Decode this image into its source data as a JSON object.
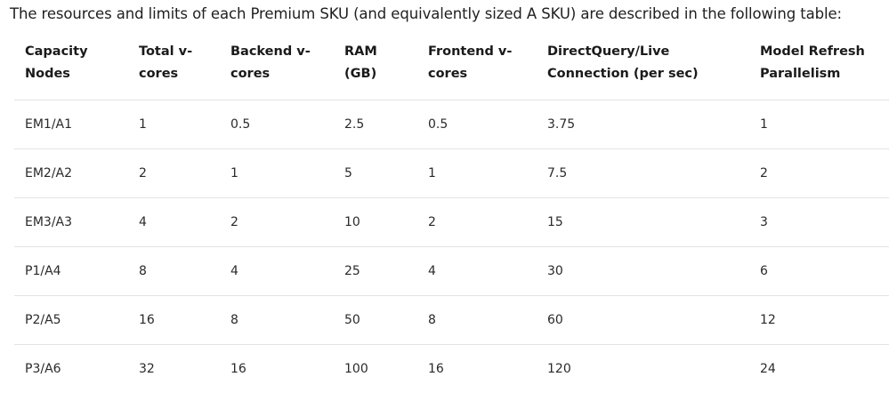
{
  "intro_text": "The resources and limits of each Premium SKU (and equivalently sized A SKU) are described in the following table:",
  "table": {
    "headers": [
      [
        "Capacity",
        "Nodes"
      ],
      [
        "Total v-",
        "cores"
      ],
      [
        "Backend v-",
        "cores"
      ],
      [
        "RAM",
        "(GB)"
      ],
      [
        "Frontend v-",
        "cores"
      ],
      [
        "DirectQuery/Live",
        "Connection (per sec)"
      ],
      [
        "Model Refresh",
        "Parallelism"
      ]
    ],
    "rows": [
      [
        "EM1/A1",
        "1",
        "0.5",
        "2.5",
        "0.5",
        "3.75",
        "1"
      ],
      [
        "EM2/A2",
        "2",
        "1",
        "5",
        "1",
        "7.5",
        "2"
      ],
      [
        "EM3/A3",
        "4",
        "2",
        "10",
        "2",
        "15",
        "3"
      ],
      [
        "P1/A4",
        "8",
        "4",
        "25",
        "4",
        "30",
        "6"
      ],
      [
        "P2/A5",
        "16",
        "8",
        "50",
        "8",
        "60",
        "12"
      ],
      [
        "P3/A6",
        "32",
        "16",
        "100",
        "16",
        "120",
        "24"
      ]
    ]
  }
}
